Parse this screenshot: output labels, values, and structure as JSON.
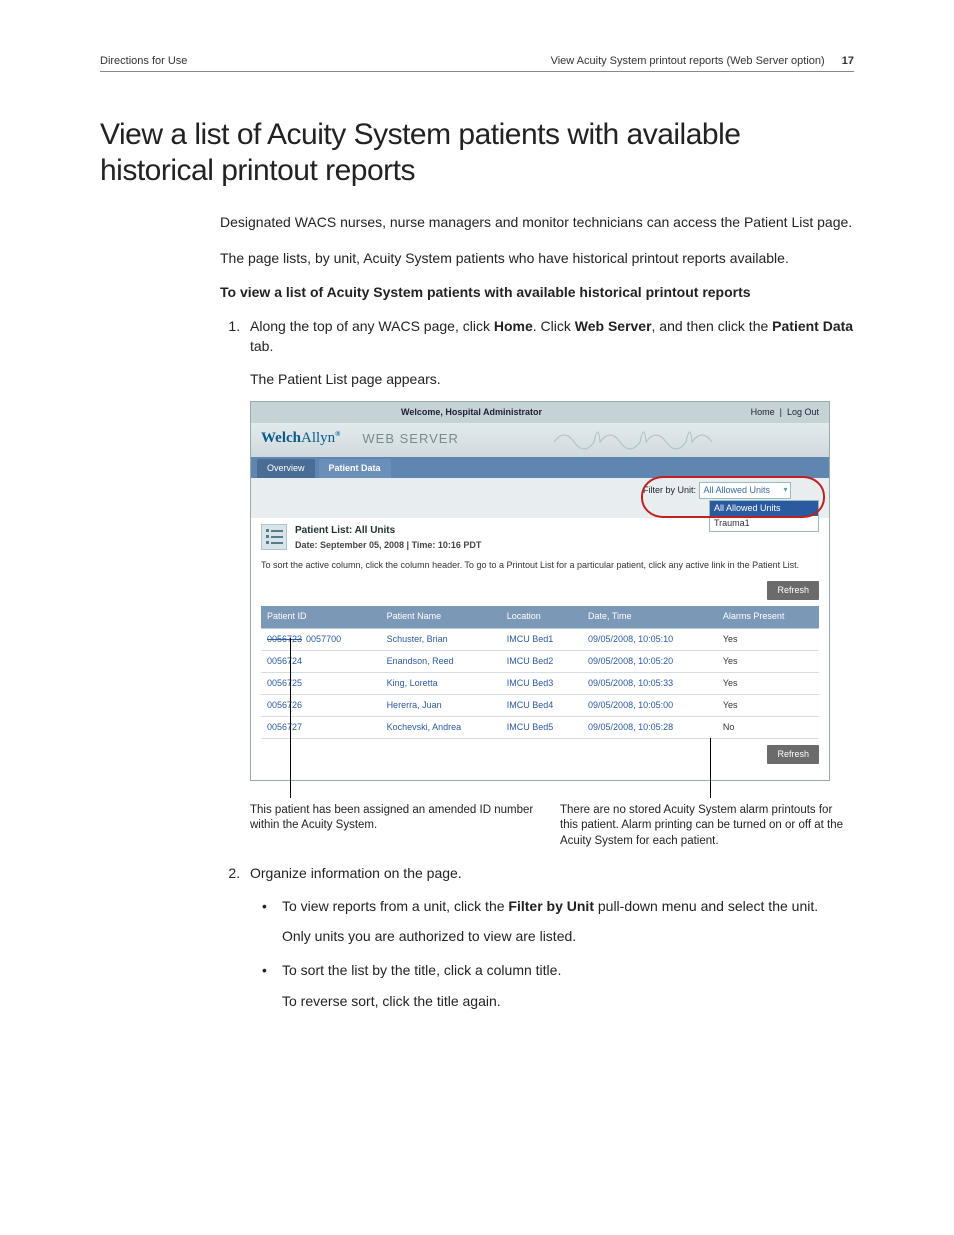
{
  "header": {
    "left": "Directions for Use",
    "right": "View Acuity System printout reports (Web Server option)",
    "page_number": "17"
  },
  "title": "View a list of Acuity System patients with available historical printout reports",
  "intro1": "Designated WACS nurses, nurse managers and monitor technicians can access the Patient List page.",
  "intro2": "The page lists, by unit, Acuity System patients who have historical printout reports available.",
  "subhead": "To view a list of Acuity System patients with available historical printout reports",
  "step1a": "Along the top of any WACS page, click ",
  "step1b": ". Click ",
  "step1c": ", and then click the ",
  "step1d": " tab.",
  "step1_home": "Home",
  "step1_ws": "Web Server",
  "step1_pd": "Patient Data",
  "step1_result": "The Patient List page appears.",
  "step2": "Organize information on the page.",
  "b1a": "To view reports from a unit, click the ",
  "b1_bold": "Filter by Unit",
  "b1b": " pull-down menu and select the unit.",
  "b1_note": "Only units you are authorized to view are listed.",
  "b2": "To sort the list by the title, click a column title.",
  "b2_note": "To reverse sort, click the title again.",
  "shot": {
    "welcome": "Welcome, Hospital Administrator",
    "nav_home": "Home",
    "nav_logout": "Log Out",
    "logo1": "Welch",
    "logo2": "Allyn",
    "ws_label": "WEB SERVER",
    "tab_overview": "Overview",
    "tab_pd": "Patient Data",
    "filter_label": "Filter by Unit:",
    "filter_selected": "All Allowed Units",
    "dd_opt1": "All Allowed Units",
    "dd_opt2": "Trauma1",
    "list_title": "Patient List: All Units",
    "list_date": "Date: September 05, 2008  |  Time: 10:16 PDT",
    "hint": "To sort the active column, click the column header. To go to a Printout List for a particular patient, click any active link in the Patient List.",
    "refresh": "Refresh",
    "cols": {
      "c1": "Patient ID",
      "c2": "Patient Name",
      "c3": "Location",
      "c4": "Date, Time",
      "c5": "Alarms Present"
    },
    "rows": [
      {
        "id_strike": "0056723",
        "id": "0057700",
        "name": "Schuster, Brian",
        "loc": "IMCU Bed1",
        "dt": "09/05/2008, 10:05:10",
        "al": "Yes"
      },
      {
        "id_strike": "",
        "id": "0056724",
        "name": "Enandson, Reed",
        "loc": "IMCU Bed2",
        "dt": "09/05/2008, 10:05:20",
        "al": "Yes"
      },
      {
        "id_strike": "",
        "id": "0056725",
        "name": "King, Loretta",
        "loc": "IMCU Bed3",
        "dt": "09/05/2008, 10:05:33",
        "al": "Yes"
      },
      {
        "id_strike": "",
        "id": "0056726",
        "name": "Hererra, Juan",
        "loc": "IMCU Bed4",
        "dt": "09/05/2008, 10:05:00",
        "al": "Yes"
      },
      {
        "id_strike": "",
        "id": "0056727",
        "name": "Kochevski, Andrea",
        "loc": "IMCU Bed5",
        "dt": "09/05/2008, 10:05:28",
        "al": "No"
      }
    ]
  },
  "caption_left": "This patient has been assigned an amended ID number within the Acuity System.",
  "caption_right": "There are no stored Acuity System alarm printouts for this patient. Alarm printing can be turned on or off at the Acuity System for each patient."
}
